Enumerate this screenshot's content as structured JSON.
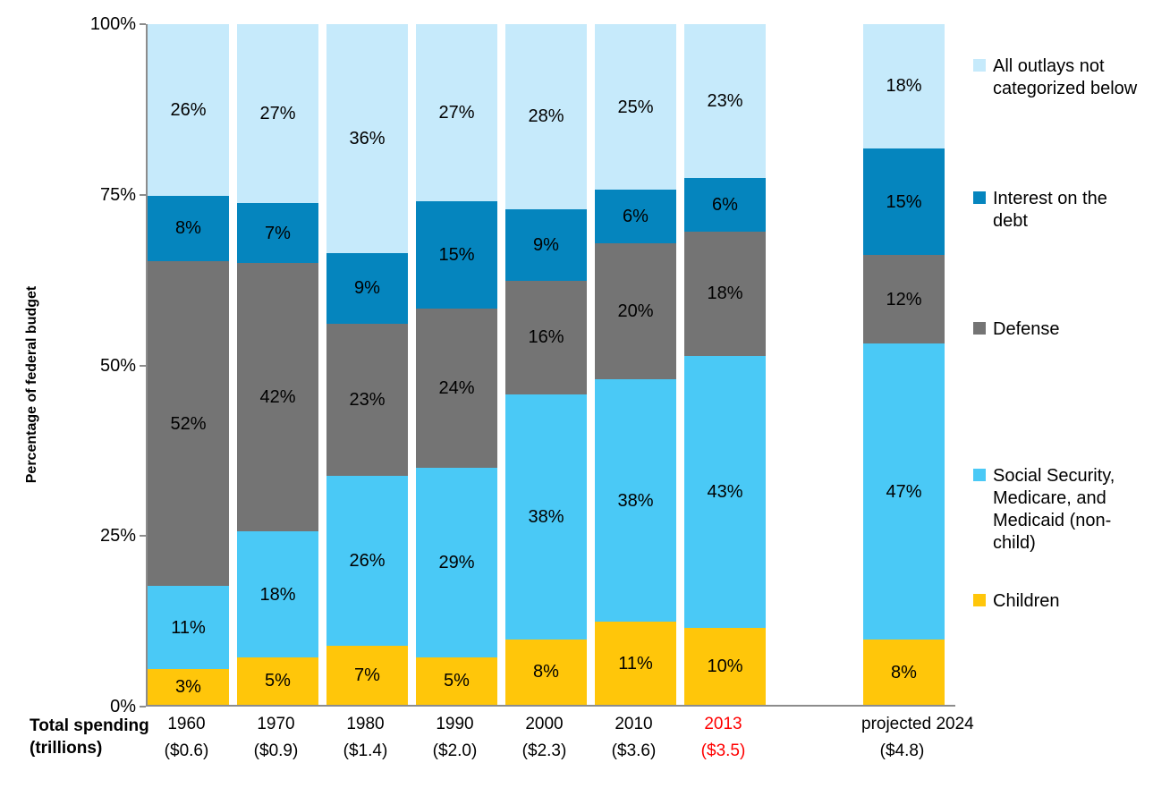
{
  "y_axis": {
    "title": "Percentage of federal budget",
    "ticks": [
      "100%",
      "75%",
      "50%",
      "25%",
      "0%"
    ]
  },
  "x_axis": {
    "title_line1": "Total spending",
    "title_line2": "(trillions)"
  },
  "colors": {
    "axis": "#8C8C8C",
    "highlight_red": "#FF0000",
    "label_text": "#000000"
  },
  "chart_data": {
    "type": "bar",
    "stacked": true,
    "percent_of_total": true,
    "title": "",
    "xlabel": "Total spending (trillions)",
    "ylabel": "Percentage of federal budget",
    "ylim": [
      0,
      100
    ],
    "grid": false,
    "legend_position": "right",
    "categories": [
      {
        "year": "1960",
        "spending": "($0.6)",
        "highlight": false
      },
      {
        "year": "1970",
        "spending": "($0.9)",
        "highlight": false
      },
      {
        "year": "1980",
        "spending": "($1.4)",
        "highlight": false
      },
      {
        "year": "1990",
        "spending": "($2.0)",
        "highlight": false
      },
      {
        "year": "2000",
        "spending": "($2.3)",
        "highlight": false
      },
      {
        "year": "2010",
        "spending": "($3.6)",
        "highlight": false
      },
      {
        "year": "2013",
        "spending": "($3.5)",
        "highlight": true
      },
      {
        "year": "projected 2024",
        "spending": "($4.8)",
        "highlight": false
      }
    ],
    "series": [
      {
        "name": "Children",
        "color": "#FFC60A",
        "values": [
          3,
          5,
          7,
          5,
          8,
          11,
          10,
          8
        ]
      },
      {
        "name": "Social Security, Medicare, and Medicaid (non-child)",
        "color": "#4AC9F6",
        "values": [
          11,
          18,
          26,
          29,
          38,
          38,
          43,
          47
        ]
      },
      {
        "name": "Defense",
        "color": "#747474",
        "values": [
          52,
          42,
          23,
          24,
          16,
          20,
          18,
          12
        ]
      },
      {
        "name": "Interest on the debt",
        "color": "#0585BE",
        "values": [
          8,
          7,
          9,
          15,
          9,
          6,
          6,
          15
        ]
      },
      {
        "name": "All outlays not categorized below",
        "color": "#C6EAFB",
        "values": [
          26,
          27,
          36,
          27,
          28,
          25,
          23,
          18
        ]
      }
    ],
    "layout": {
      "empty_slot_before_index": 7,
      "legend_item_tops": [
        62,
        210,
        356,
        520,
        660
      ]
    }
  }
}
